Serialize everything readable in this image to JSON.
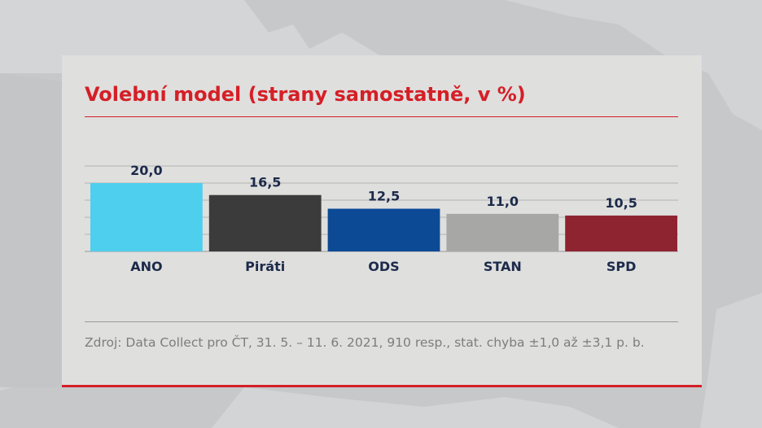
{
  "title": "Volební model (strany samostatně, v %)",
  "source": "Zdroj: Data Collect pro ČT, 31. 5. – 11. 6. 2021, 910 resp., stat. chyba ±1,0 až ±3,1 p. b.",
  "chart_data": {
    "type": "bar",
    "title": "Volební model (strany samostatně, v %)",
    "categories": [
      "ANO",
      "Piráti",
      "ODS",
      "STAN",
      "SPD"
    ],
    "values": [
      20.0,
      16.5,
      12.5,
      11.0,
      10.5
    ],
    "value_labels": [
      "20,0",
      "16,5",
      "12,5",
      "11,0",
      "10,5"
    ],
    "colors": [
      "#4ecfee",
      "#3a3b3a",
      "#0c4a96",
      "#a7a7a6",
      "#8e2430"
    ],
    "ylim": [
      0,
      25
    ],
    "gridlines": [
      5,
      10,
      15,
      20,
      25
    ],
    "grid": true,
    "legend": "none"
  }
}
